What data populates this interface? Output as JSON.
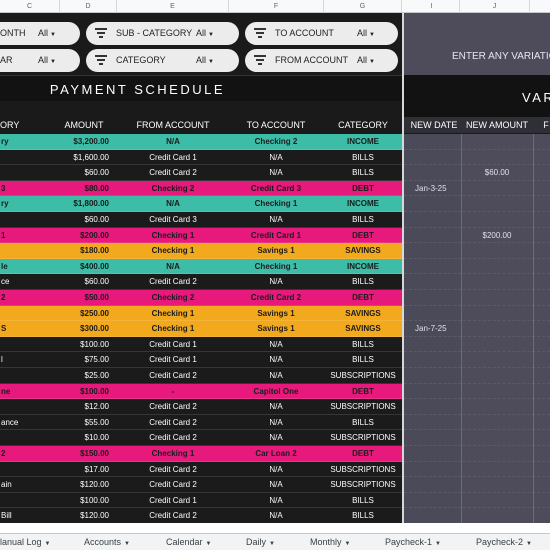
{
  "columns": [
    "C",
    "D",
    "E",
    "F",
    "G",
    "I",
    "J"
  ],
  "filters": {
    "month": {
      "label": "ONTH",
      "value": "All"
    },
    "sub_category": {
      "label": "SUB - CATEGORY",
      "value": "All"
    },
    "to_account": {
      "label": "TO ACCOUNT",
      "value": "All"
    },
    "year": {
      "label": "AR",
      "value": "All"
    },
    "category": {
      "label": "CATEGORY",
      "value": "All"
    },
    "from_account": {
      "label": "FROM ACCOUNT",
      "value": "All"
    }
  },
  "variation_prompt": "ENTER ANY VARIATIO",
  "schedule_title": "PAYMENT SCHEDULE",
  "variation_title": "VAR",
  "headers": {
    "category": "ORY",
    "amount": "AMOUNT",
    "from_account": "FROM ACCOUNT",
    "to_account": "TO ACCOUNT",
    "category2": "CATEGORY",
    "new_date": "NEW DATE",
    "new_amount": "NEW AMOUNT",
    "next": "F"
  },
  "colors": {
    "teal": "#3dbda8",
    "pink": "#e8197d",
    "orange": "#f2a91e",
    "dark": "#1b1b1b",
    "variation_bg": "#4e4b5b"
  },
  "rows": [
    {
      "name": "ry",
      "amount": "$3,200.00",
      "from": "N/A",
      "to": "Checking 2",
      "category": "INCOME",
      "color": "#3dbda8",
      "new_date": "",
      "new_amount": ""
    },
    {
      "name": "",
      "amount": "$1,600.00",
      "from": "Credit Card 1",
      "to": "N/A",
      "category": "BILLS",
      "color": "#1b1b1b",
      "new_date": "",
      "new_amount": ""
    },
    {
      "name": "",
      "amount": "$60.00",
      "from": "Credit Card 2",
      "to": "N/A",
      "category": "BILLS",
      "color": "#1b1b1b",
      "new_date": "",
      "new_amount": "$60.00"
    },
    {
      "name": "3",
      "amount": "$80.00",
      "from": "Checking 2",
      "to": "Credit Card 3",
      "category": "DEBT",
      "color": "#e8197d",
      "new_date": "Jan-3-25",
      "new_amount": ""
    },
    {
      "name": "ry",
      "amount": "$1,800.00",
      "from": "N/A",
      "to": "Checking 1",
      "category": "INCOME",
      "color": "#3dbda8",
      "new_date": "",
      "new_amount": ""
    },
    {
      "name": "",
      "amount": "$60.00",
      "from": "Credit Card 3",
      "to": "N/A",
      "category": "BILLS",
      "color": "#1b1b1b",
      "new_date": "",
      "new_amount": ""
    },
    {
      "name": "1",
      "amount": "$200.00",
      "from": "Checking 1",
      "to": "Credit Card 1",
      "category": "DEBT",
      "color": "#e8197d",
      "new_date": "",
      "new_amount": "$200.00"
    },
    {
      "name": "",
      "amount": "$180.00",
      "from": "Checking 1",
      "to": "Savings 1",
      "category": "SAVINGS",
      "color": "#f2a91e",
      "new_date": "",
      "new_amount": ""
    },
    {
      "name": "le",
      "amount": "$400.00",
      "from": "N/A",
      "to": "Checking 1",
      "category": "INCOME",
      "color": "#3dbda8",
      "new_date": "",
      "new_amount": ""
    },
    {
      "name": "ce",
      "amount": "$60.00",
      "from": "Credit Card 2",
      "to": "N/A",
      "category": "BILLS",
      "color": "#1b1b1b",
      "new_date": "",
      "new_amount": ""
    },
    {
      "name": "2",
      "amount": "$50.00",
      "from": "Checking 2",
      "to": "Credit Card 2",
      "category": "DEBT",
      "color": "#e8197d",
      "new_date": "",
      "new_amount": ""
    },
    {
      "name": "",
      "amount": "$250.00",
      "from": "Checking 1",
      "to": "Savings 1",
      "category": "SAVINGS",
      "color": "#f2a91e",
      "new_date": "",
      "new_amount": ""
    },
    {
      "name": "S",
      "amount": "$300.00",
      "from": "Checking 1",
      "to": "Savings 1",
      "category": "SAVINGS",
      "color": "#f2a91e",
      "new_date": "Jan-7-25",
      "new_amount": ""
    },
    {
      "name": "",
      "amount": "$100.00",
      "from": "Credit Card 1",
      "to": "N/A",
      "category": "BILLS",
      "color": "#1b1b1b",
      "new_date": "",
      "new_amount": ""
    },
    {
      "name": "l",
      "amount": "$75.00",
      "from": "Credit Card 1",
      "to": "N/A",
      "category": "BILLS",
      "color": "#1b1b1b",
      "new_date": "",
      "new_amount": ""
    },
    {
      "name": "",
      "amount": "$25.00",
      "from": "Credit Card 2",
      "to": "N/A",
      "category": "SUBSCRIPTIONS",
      "color": "#1b1b1b",
      "new_date": "",
      "new_amount": ""
    },
    {
      "name": "ne",
      "amount": "$100.00",
      "from": "-",
      "to": "Capitol One",
      "category": "DEBT",
      "color": "#e8197d",
      "new_date": "",
      "new_amount": ""
    },
    {
      "name": "",
      "amount": "$12.00",
      "from": "Credit Card 2",
      "to": "N/A",
      "category": "SUBSCRIPTIONS",
      "color": "#1b1b1b",
      "new_date": "",
      "new_amount": ""
    },
    {
      "name": "ance",
      "amount": "$55.00",
      "from": "Credit Card 2",
      "to": "N/A",
      "category": "BILLS",
      "color": "#1b1b1b",
      "new_date": "",
      "new_amount": ""
    },
    {
      "name": "",
      "amount": "$10.00",
      "from": "Credit Card 2",
      "to": "N/A",
      "category": "SUBSCRIPTIONS",
      "color": "#1b1b1b",
      "new_date": "",
      "new_amount": ""
    },
    {
      "name": "2",
      "amount": "$150.00",
      "from": "Checking 1",
      "to": "Car Loan 2",
      "category": "DEBT",
      "color": "#e8197d",
      "new_date": "",
      "new_amount": ""
    },
    {
      "name": "",
      "amount": "$17.00",
      "from": "Credit Card 2",
      "to": "N/A",
      "category": "SUBSCRIPTIONS",
      "color": "#1b1b1b",
      "new_date": "",
      "new_amount": ""
    },
    {
      "name": "ain",
      "amount": "$120.00",
      "from": "Credit Card 2",
      "to": "N/A",
      "category": "SUBSCRIPTIONS",
      "color": "#1b1b1b",
      "new_date": "",
      "new_amount": ""
    },
    {
      "name": "",
      "amount": "$100.00",
      "from": "Credit Card 1",
      "to": "N/A",
      "category": "BILLS",
      "color": "#1b1b1b",
      "new_date": "",
      "new_amount": ""
    },
    {
      "name": "Bill",
      "amount": "$120.00",
      "from": "Credit Card 2",
      "to": "N/A",
      "category": "BILLS",
      "color": "#1b1b1b",
      "new_date": "",
      "new_amount": ""
    }
  ],
  "tabs": [
    "lanual Log",
    "Accounts",
    "Calendar",
    "Daily",
    "Monthly",
    "Paycheck-1",
    "Paycheck-2"
  ]
}
